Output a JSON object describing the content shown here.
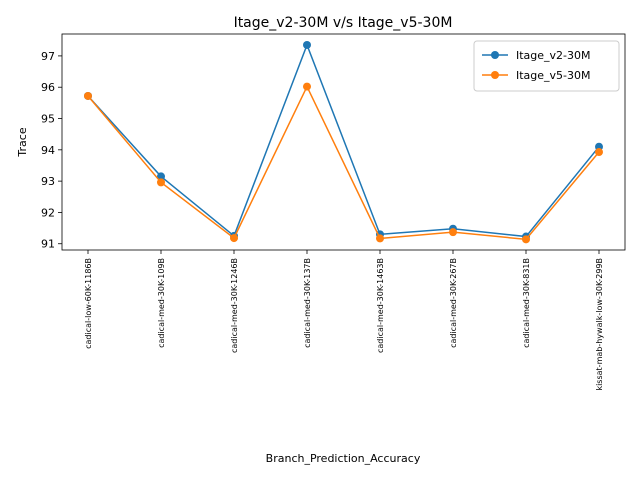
{
  "chart_data": {
    "type": "line",
    "title": "Itage_v2-30M v/s Itage_v5-30M",
    "xlabel": "Branch_Prediction_Accuracy",
    "ylabel": "Trace",
    "categories": [
      "cadical-low-60K-1186B",
      "cadical-med-30K-109B",
      "cadical-med-30K-1246B",
      "cadical-med-30K-137B",
      "cadical-med-30K-1463B",
      "cadical-med-30K-267B",
      "cadical-med-30K-831B",
      "kissat-mab-hywalk-low-30K-299B"
    ],
    "series": [
      {
        "name": "Itage_v2-30M",
        "color": "#1f77b4",
        "values": [
          95.72,
          93.15,
          91.25,
          97.35,
          91.3,
          91.48,
          91.23,
          94.1
        ]
      },
      {
        "name": "Itage_v5-30M",
        "color": "#ff7f0e",
        "values": [
          95.72,
          92.96,
          91.18,
          96.02,
          91.17,
          91.37,
          91.14,
          93.93
        ]
      }
    ],
    "ylim": [
      90.8,
      97.7
    ],
    "yticks": [
      "91",
      "92",
      "93",
      "94",
      "95",
      "96",
      "97"
    ],
    "legend": "top-right",
    "grid": false
  }
}
